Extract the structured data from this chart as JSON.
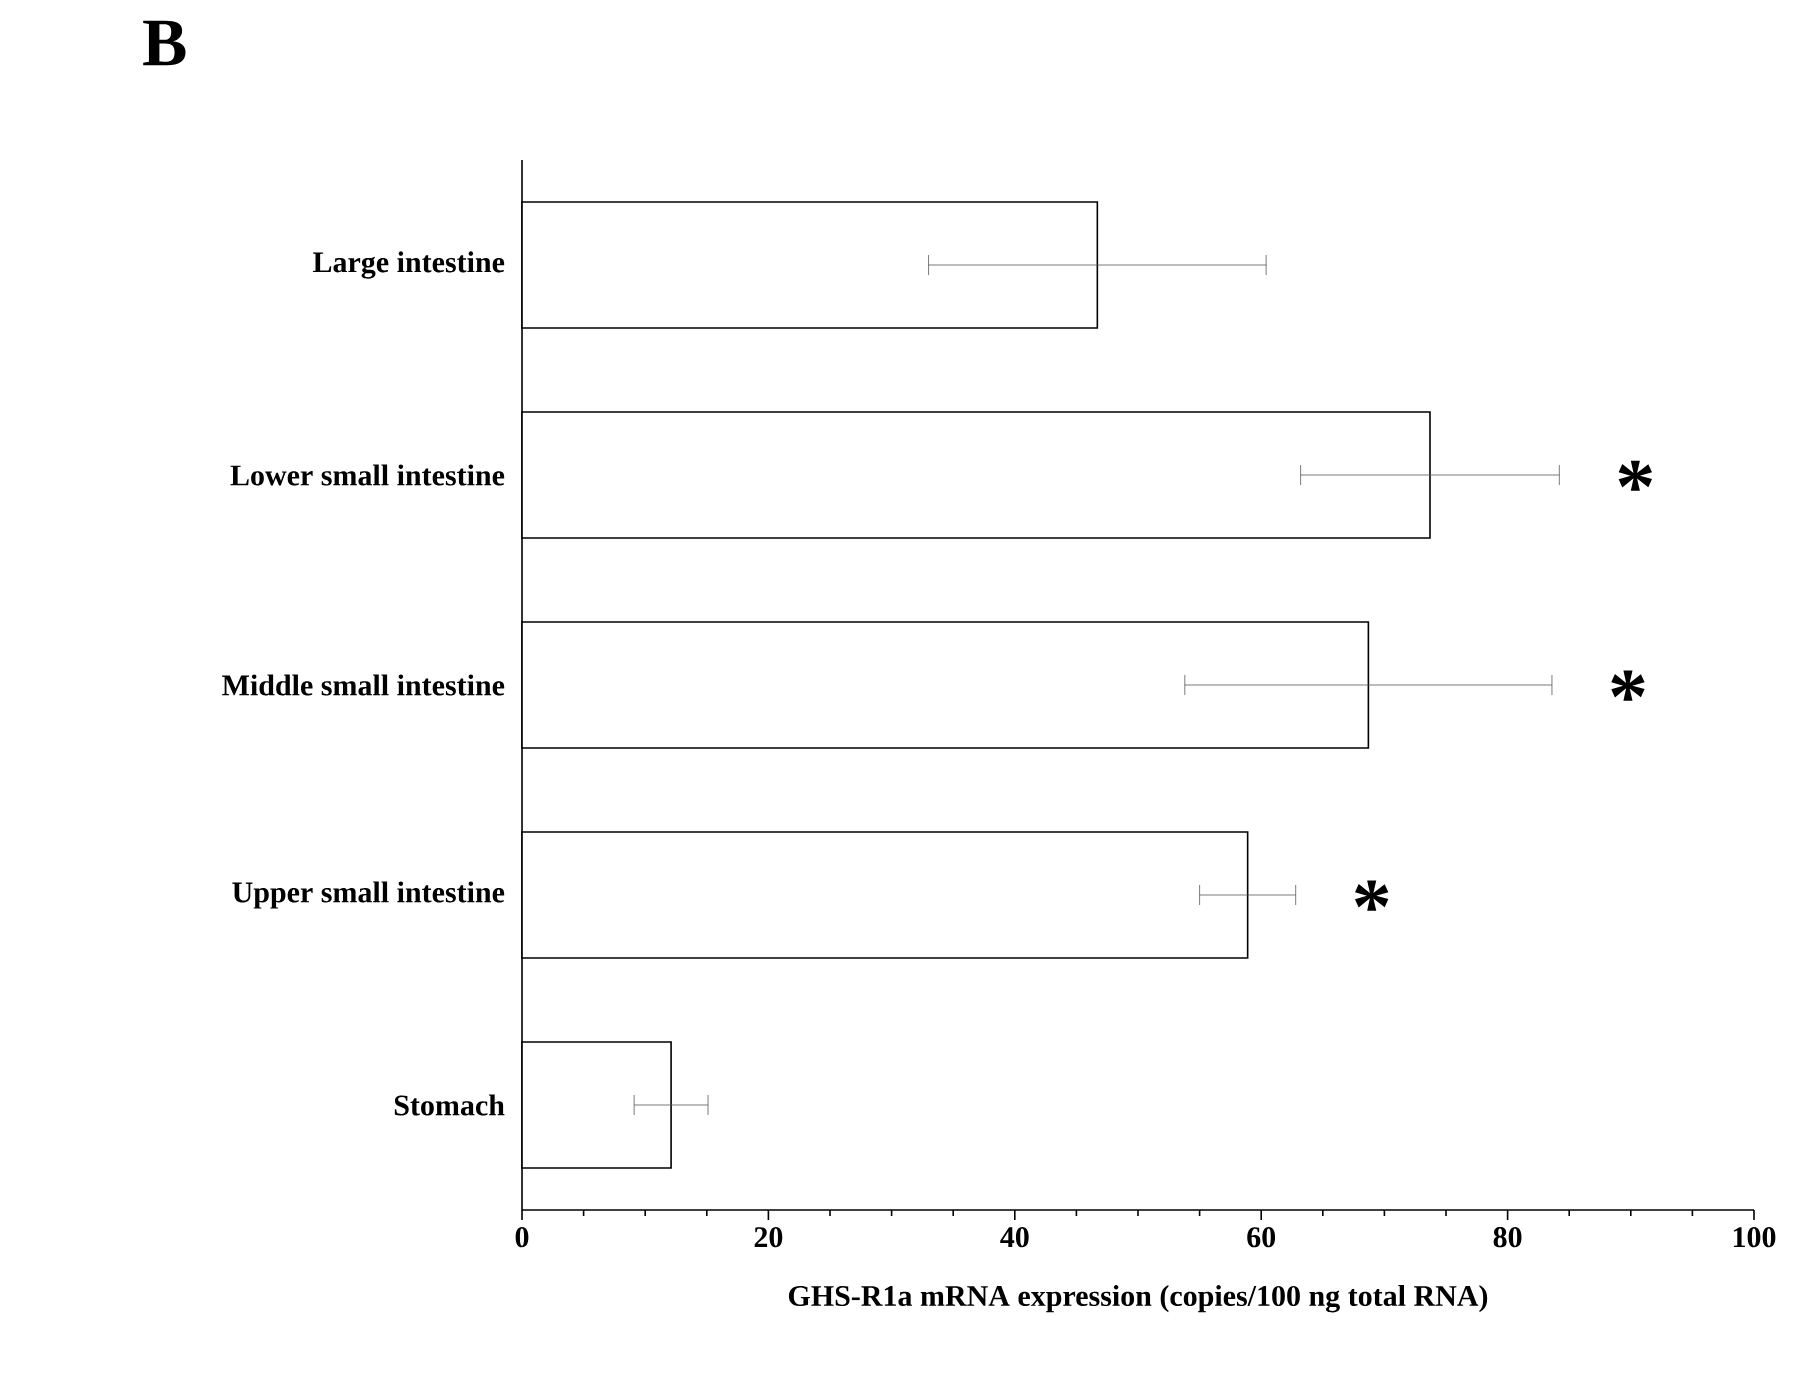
{
  "chart_data": {
    "type": "bar",
    "orientation": "horizontal",
    "title": "B",
    "categories": [
      "Large intestine",
      "Lower small intestine",
      "Middle small intestine",
      "Upper small intestine",
      "Stomach"
    ],
    "values": [
      46.7,
      73.7,
      68.7,
      58.9,
      12.1
    ],
    "errors": [
      13.7,
      10.5,
      14.9,
      3.9,
      3.0
    ],
    "color": "#ffffff",
    "xlabel": "GHS-R1a mRNA expression (copies/100 ng total RNA)",
    "xlim": [
      0,
      100
    ],
    "xticks": [
      0,
      20,
      40,
      60,
      80,
      100
    ],
    "annotations": [
      "*",
      "*",
      "*"
    ]
  }
}
